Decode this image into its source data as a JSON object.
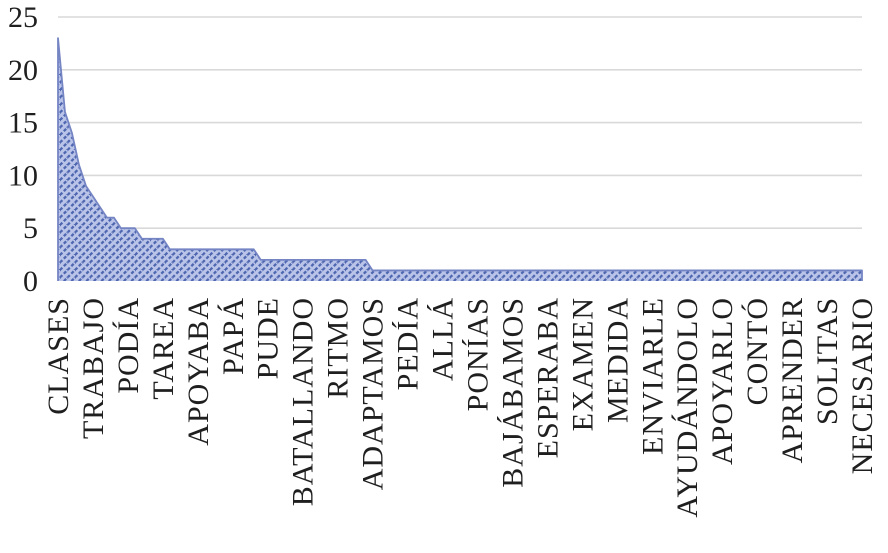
{
  "chart_data": {
    "type": "area",
    "title": "",
    "xlabel": "",
    "ylabel": "",
    "ylim": [
      0,
      25
    ],
    "yticks": [
      0,
      5,
      10,
      15,
      20,
      25
    ],
    "grid": "horizontal",
    "legend_position": "none",
    "x_label_interval": 5,
    "visible_x_labels": [
      "CLASES",
      "TRABAJO",
      "PODÍA",
      "TAREA",
      "APOYABA",
      "PAPÁ",
      "PUDE",
      "BATALLANDO",
      "RITMO",
      "ADAPTAMOS",
      "PEDÍA",
      "ALLÁ",
      "PONÍAS",
      "BAJÁBAMOS",
      "ESPERABA",
      "EXAMEN",
      "MEDIDA",
      "ENVIARLE",
      "AYUDÁNDOLO",
      "APOYARLO",
      "CONTÓ",
      "APRENDER",
      "SOLITAS",
      "NECESARIO"
    ],
    "values": [
      23,
      16,
      14,
      11,
      9,
      8,
      7,
      6,
      6,
      5,
      5,
      5,
      4,
      4,
      4,
      4,
      3,
      3,
      3,
      3,
      3,
      3,
      3,
      3,
      3,
      3,
      3,
      3,
      3,
      2,
      2,
      2,
      2,
      2,
      2,
      2,
      2,
      2,
      2,
      2,
      2,
      2,
      2,
      2,
      2,
      1,
      1,
      1,
      1,
      1,
      1,
      1,
      1,
      1,
      1,
      1,
      1,
      1,
      1,
      1,
      1,
      1,
      1,
      1,
      1,
      1,
      1,
      1,
      1,
      1,
      1,
      1,
      1,
      1,
      1,
      1,
      1,
      1,
      1,
      1,
      1,
      1,
      1,
      1,
      1,
      1,
      1,
      1,
      1,
      1,
      1,
      1,
      1,
      1,
      1,
      1,
      1,
      1,
      1,
      1,
      1,
      1,
      1,
      1,
      1,
      1,
      1,
      1,
      1,
      1,
      1,
      1,
      1,
      1,
      1,
      1
    ],
    "colors": {
      "pattern_background": "#bac4e9",
      "pattern_foreground": "#4f67b0",
      "area_border": "#7585c4",
      "gridline": "#d9d9d9",
      "text": "#1f1f1f",
      "page_background": "#ffffff"
    }
  }
}
